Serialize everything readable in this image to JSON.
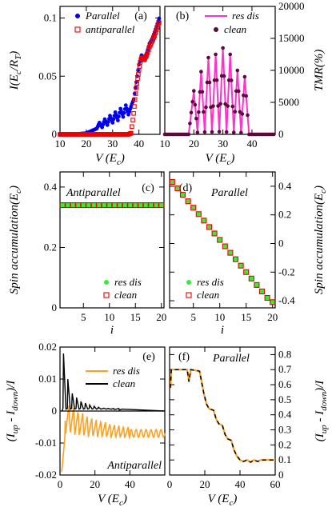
{
  "chart_data": [
    {
      "id": "a",
      "type": "scatter",
      "panel_label": "(a)",
      "xlabel": "V (E",
      "xlabel_sub": "c",
      "xlabel_end": ")",
      "ylabel": "I(E",
      "ylabel_sub": "c",
      "ylabel_mid": "/R",
      "ylabel_sub2": "T",
      "ylabel_end": ")",
      "xlim": [
        10,
        48
      ],
      "ylim": [
        0,
        0.11
      ],
      "xticks": [
        10,
        20,
        30,
        40
      ],
      "yticks": [
        0,
        0.05,
        0.1
      ],
      "ytick_labels": [
        "0",
        "0.05",
        "0.1"
      ],
      "legend": "top-left",
      "series": [
        {
          "name": "Parallel",
          "color": "#0000ee",
          "marker": "dot",
          "x": [
            10,
            15,
            20,
            22,
            24,
            25,
            26,
            27,
            28,
            29,
            30,
            31,
            32,
            33,
            34,
            35,
            36,
            37,
            38,
            39,
            40,
            41,
            42,
            43,
            44,
            45,
            46,
            47,
            48
          ],
          "y": [
            0,
            0,
            0.001,
            0.003,
            0.005,
            0.01,
            0.006,
            0.013,
            0.008,
            0.016,
            0.01,
            0.019,
            0.012,
            0.022,
            0.015,
            0.025,
            0.017,
            0.024,
            0.03,
            0.045,
            0.06,
            0.068,
            0.065,
            0.07,
            0.078,
            0.082,
            0.088,
            0.095,
            0.102
          ]
        },
        {
          "name": "antiparallel",
          "color": "#ee0000",
          "marker": "open-square",
          "x": [
            10,
            20,
            30,
            36,
            37,
            38,
            38.5,
            39,
            39.5,
            40,
            40.5,
            41,
            42,
            43,
            44,
            45,
            46,
            47,
            48
          ],
          "y": [
            0,
            0,
            0,
            0,
            0.001,
            0.018,
            0.03,
            0.04,
            0.048,
            0.055,
            0.062,
            0.066,
            0.064,
            0.068,
            0.075,
            0.08,
            0.085,
            0.092,
            0.098
          ]
        }
      ]
    },
    {
      "id": "b",
      "type": "line",
      "panel_label": "(b)",
      "xlabel": "V (E",
      "xlabel_sub": "c",
      "xlabel_end": ")",
      "ylabel_right": "TMR(%)",
      "xlim": [
        10,
        48
      ],
      "ylim": [
        0,
        20000
      ],
      "xticks": [
        10,
        20,
        30,
        40
      ],
      "yticks": [
        0,
        5000,
        10000,
        15000,
        20000
      ],
      "legend": "top-right",
      "peaks_x": [
        20,
        22.5,
        25,
        27.5,
        30,
        32.5,
        35,
        37.5
      ],
      "peaks_y": [
        6800,
        9800,
        12000,
        12500,
        13500,
        12500,
        10000,
        9000
      ],
      "series": [
        {
          "name": "res dis",
          "color": "#ff33cc",
          "marker": "line"
        },
        {
          "name": "clean",
          "color": "#5c0a3c",
          "marker": "dot"
        }
      ]
    },
    {
      "id": "c",
      "type": "scatter",
      "panel_label": "(c)",
      "annotation": "Antiparallel",
      "xlabel": "i",
      "ylabel": "Spin accumulation(E",
      "ylabel_sub": "c",
      "ylabel_end": ")",
      "xlim": [
        0.5,
        20.5
      ],
      "ylim": [
        0,
        0.45
      ],
      "xticks": [
        5,
        10,
        15,
        20
      ],
      "yticks": [
        0,
        0.2,
        0.4
      ],
      "ytick_labels": [
        "0",
        "0.2",
        "0.4"
      ],
      "legend": "bottom-right",
      "x": [
        1,
        2,
        3,
        4,
        5,
        6,
        7,
        8,
        9,
        10,
        11,
        12,
        13,
        14,
        15,
        16,
        17,
        18,
        19,
        20
      ],
      "series": [
        {
          "name": "res dis",
          "color": "#33ee33",
          "marker": "dot",
          "y": [
            0.34,
            0.34,
            0.34,
            0.34,
            0.34,
            0.34,
            0.34,
            0.34,
            0.34,
            0.34,
            0.34,
            0.34,
            0.34,
            0.34,
            0.34,
            0.34,
            0.34,
            0.34,
            0.34,
            0.34
          ]
        },
        {
          "name": "clean",
          "color": "#ee0000",
          "marker": "open-square",
          "y": [
            0.34,
            0.34,
            0.34,
            0.34,
            0.34,
            0.34,
            0.34,
            0.34,
            0.34,
            0.34,
            0.34,
            0.34,
            0.34,
            0.34,
            0.34,
            0.34,
            0.34,
            0.34,
            0.34,
            0.34
          ]
        }
      ]
    },
    {
      "id": "d",
      "type": "scatter",
      "panel_label": "(d)",
      "annotation": "Parallel",
      "xlabel": "i",
      "ylabel_right": "Spin accumulation(E",
      "ylabel_sub": "c",
      "ylabel_end": ")",
      "xlim": [
        0.5,
        20.5
      ],
      "ylim": [
        -0.45,
        0.5
      ],
      "xticks": [
        5,
        10,
        15,
        20
      ],
      "yticks": [
        -0.4,
        -0.2,
        0,
        0.2,
        0.4
      ],
      "ytick_labels": [
        "-0.4",
        "-0.2",
        "0",
        "0.2",
        "0.4"
      ],
      "legend": "bottom-left",
      "x": [
        1,
        2,
        3,
        4,
        5,
        6,
        7,
        8,
        9,
        10,
        11,
        12,
        13,
        14,
        15,
        16,
        17,
        18,
        19,
        20
      ],
      "series": [
        {
          "name": "res dis",
          "color": "#33ee33",
          "marker": "dot",
          "y": [
            0.43,
            0.385,
            0.34,
            0.295,
            0.25,
            0.205,
            0.16,
            0.115,
            0.07,
            0.025,
            -0.02,
            -0.065,
            -0.11,
            -0.155,
            -0.2,
            -0.245,
            -0.29,
            -0.335,
            -0.38,
            -0.41
          ]
        },
        {
          "name": "clean",
          "color": "#ee0000",
          "marker": "open-square",
          "y": [
            0.43,
            0.385,
            0.34,
            0.295,
            0.25,
            0.205,
            0.16,
            0.115,
            0.07,
            0.025,
            -0.02,
            -0.065,
            -0.11,
            -0.155,
            -0.2,
            -0.245,
            -0.29,
            -0.335,
            -0.38,
            -0.41
          ]
        }
      ]
    },
    {
      "id": "e",
      "type": "line",
      "panel_label": "(e)",
      "annotation": "Antiparallel",
      "xlabel": "V (E",
      "xlabel_sub": "c",
      "xlabel_end": ")",
      "ylabel": "(I",
      "ylabel_sub": "up",
      "ylabel_mid": " - I",
      "ylabel_sub2": "down",
      "ylabel_end": ")/I",
      "xlim": [
        0,
        60
      ],
      "ylim": [
        -0.02,
        0.02
      ],
      "xticks": [
        0,
        20,
        40
      ],
      "yticks": [
        -0.02,
        -0.01,
        0,
        0.01,
        0.02
      ],
      "ytick_labels": [
        "-0.02",
        "-0.01",
        "0",
        "0.01",
        "0.02"
      ],
      "legend": "top-right",
      "series": [
        {
          "name": "res dis",
          "color": "#ffa020",
          "marker": "line"
        },
        {
          "name": "clean",
          "color": "#000000",
          "marker": "line"
        }
      ]
    },
    {
      "id": "f",
      "type": "line",
      "panel_label": "(f)",
      "annotation": "Parallel",
      "xlabel": "V (E",
      "xlabel_sub": "c",
      "xlabel_end": ")",
      "ylabel_right": "(I",
      "ylabel_sub": "up",
      "ylabel_mid": " - I",
      "ylabel_sub2": "down",
      "ylabel_end": ")/I",
      "xlim": [
        0,
        60
      ],
      "ylim": [
        0,
        0.85
      ],
      "xticks": [
        0,
        20,
        40,
        60
      ],
      "yticks": [
        0,
        0.1,
        0.2,
        0.3,
        0.4,
        0.5,
        0.6,
        0.7,
        0.8
      ],
      "ytick_labels": [
        "0",
        "0.1",
        "0.2",
        "0.3",
        "0.4",
        "0.5",
        "0.6",
        "0.7",
        "0.8"
      ],
      "series": [
        {
          "name": "res dis",
          "color": "#ffa020",
          "marker": "line"
        },
        {
          "name": "clean",
          "color": "#000000",
          "marker": "dashed"
        }
      ]
    }
  ]
}
